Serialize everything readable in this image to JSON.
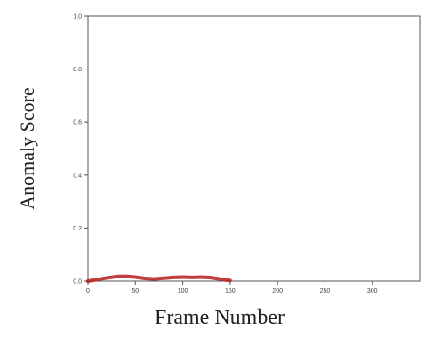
{
  "chart_data": {
    "type": "line",
    "title": "",
    "xlabel": "Frame Number",
    "ylabel": "Anomaly Score",
    "xlim": [
      0,
      350
    ],
    "ylim": [
      0.0,
      1.0
    ],
    "x_ticks": [
      0,
      50,
      100,
      150,
      200,
      250,
      300
    ],
    "x_tick_labels": [
      "0",
      "50",
      "100",
      "150",
      "200",
      "250",
      "300"
    ],
    "y_ticks": [
      0.0,
      0.2,
      0.4,
      0.6,
      0.8,
      1.0
    ],
    "y_tick_labels": [
      "0.0",
      "0.2",
      "0.4",
      "0.6",
      "0.8",
      "1.0"
    ],
    "grid": false,
    "series": [
      {
        "color": "#b71c1c",
        "x": [
          0,
          10,
          20,
          30,
          40,
          50,
          60,
          70,
          80,
          90,
          100,
          110,
          120,
          130,
          140,
          150
        ],
        "values": [
          0.0,
          0.006,
          0.012,
          0.017,
          0.018,
          0.015,
          0.01,
          0.008,
          0.011,
          0.014,
          0.015,
          0.014,
          0.015,
          0.013,
          0.007,
          0.002
        ]
      }
    ]
  }
}
